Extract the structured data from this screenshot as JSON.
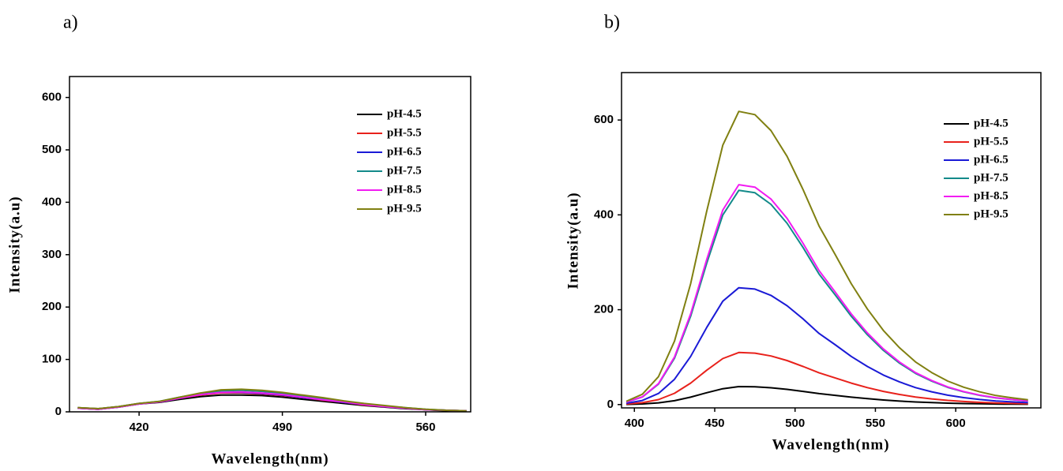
{
  "chart_data": [
    {
      "type": "line",
      "label": "a)",
      "x_label": "Wavelength(nm)",
      "y_label": "Intensity(a.u)",
      "x": [
        390,
        400,
        410,
        420,
        430,
        440,
        450,
        460,
        470,
        480,
        490,
        500,
        510,
        520,
        530,
        540,
        550,
        560,
        570,
        580
      ],
      "xlim": [
        386,
        582
      ],
      "xticks": [
        420,
        490,
        560
      ],
      "ylim": [
        0,
        640
      ],
      "yticks": [
        0,
        100,
        200,
        300,
        400,
        500,
        600
      ],
      "legend": "upper right",
      "series": [
        {
          "name": "pH-4.5",
          "color": "#000000",
          "values": [
            7,
            5,
            9,
            15,
            18,
            24,
            29,
            32,
            32,
            31,
            28,
            24,
            20,
            16,
            12,
            9,
            6,
            4,
            2,
            1
          ]
        },
        {
          "name": "pH-5.5",
          "color": "#e8211b",
          "values": [
            8,
            6,
            10,
            16,
            19,
            26,
            32,
            36,
            36,
            34,
            31,
            27,
            22,
            18,
            13,
            10,
            7,
            4,
            3,
            2
          ]
        },
        {
          "name": "pH-6.5",
          "color": "#1a1ad6",
          "values": [
            7,
            5,
            9,
            15,
            19,
            26,
            33,
            37,
            37,
            35,
            32,
            27,
            23,
            18,
            14,
            10,
            7,
            4,
            3,
            2
          ]
        },
        {
          "name": "pH-7.5",
          "color": "#138a8a",
          "values": [
            8,
            6,
            10,
            16,
            20,
            28,
            35,
            40,
            41,
            39,
            35,
            30,
            25,
            20,
            15,
            11,
            8,
            5,
            3,
            2
          ]
        },
        {
          "name": "pH-8.5",
          "color": "#f21cf2",
          "values": [
            7,
            5,
            9,
            15,
            19,
            26,
            33,
            37,
            38,
            36,
            33,
            28,
            23,
            19,
            14,
            10,
            7,
            4,
            3,
            2
          ]
        },
        {
          "name": "pH-9.5",
          "color": "#808011",
          "values": [
            8,
            6,
            10,
            16,
            20,
            28,
            36,
            42,
            43,
            41,
            37,
            32,
            27,
            21,
            16,
            12,
            8,
            5,
            3,
            2
          ]
        }
      ]
    },
    {
      "type": "line",
      "label": "b)",
      "x_label": "Wavelength(nm)",
      "y_label": "Intensity(a.u)",
      "x": [
        395,
        405,
        415,
        425,
        435,
        445,
        455,
        465,
        475,
        485,
        495,
        505,
        515,
        525,
        535,
        545,
        555,
        565,
        575,
        585,
        595,
        605,
        615,
        625,
        635,
        645
      ],
      "xlim": [
        392,
        653
      ],
      "xticks": [
        400,
        450,
        500,
        550,
        600
      ],
      "ylim": [
        -7,
        700
      ],
      "yticks": [
        0,
        200,
        400,
        600
      ],
      "legend": "upper right",
      "series": [
        {
          "name": "pH-4.5",
          "color": "#000000",
          "values": [
            0.4,
            1.3,
            3.6,
            8.2,
            15.6,
            25,
            33.5,
            37.9,
            37.5,
            35.4,
            32.1,
            27.8,
            23.1,
            19.4,
            15.6,
            12.4,
            9.6,
            7.3,
            5.5,
            4.1,
            3,
            2.2,
            1.6,
            1.2,
            0.9,
            0.6
          ]
        },
        {
          "name": "pH-5.5",
          "color": "#e8211b",
          "values": [
            1.2,
            3.9,
            10.5,
            23.8,
            45.2,
            72.3,
            97,
            109.7,
            108.5,
            102.5,
            92.8,
            80.4,
            66.8,
            56.1,
            45.2,
            35.8,
            27.7,
            21.2,
            16,
            12,
            8.8,
            6.5,
            4.7,
            3.4,
            2.5,
            1.8
          ]
        },
        {
          "name": "pH-6.5",
          "color": "#1a1ad6",
          "values": [
            2.7,
            8.6,
            23.5,
            53.4,
            101.5,
            162.3,
            217.9,
            246.3,
            243.5,
            230.2,
            208.5,
            180.6,
            149.9,
            126,
            101.5,
            80.3,
            62.2,
            47.7,
            35.8,
            26.9,
            19.8,
            14.6,
            10.6,
            7.7,
            5.7,
            4
          ]
        },
        {
          "name": "pH-7.5",
          "color": "#138a8a",
          "values": [
            5,
            15.9,
            43,
            97.8,
            186.2,
            297.6,
            399.5,
            451.6,
            446.7,
            422.2,
            382.3,
            331.1,
            275,
            231,
            186.2,
            147.2,
            114.2,
            87.4,
            65.7,
            49.4,
            36.2,
            26.7,
            19.5,
            14,
            10.4,
            7.2
          ]
        },
        {
          "name": "pH-8.5",
          "color": "#f21cf2",
          "values": [
            5.1,
            16.3,
            44.2,
            100.4,
            191.1,
            305.5,
            410.1,
            463.6,
            458.5,
            433.4,
            392.5,
            339.9,
            282.3,
            237.2,
            191.1,
            151.1,
            117.2,
            89.7,
            67.4,
            50.7,
            37.2,
            27.4,
            20,
            14.4,
            10.7,
            7.4
          ]
        },
        {
          "name": "pH-9.5",
          "color": "#808011",
          "values": [
            6.8,
            21.7,
            58.9,
            133.9,
            254.8,
            407.3,
            546.8,
            618.1,
            611.3,
            577.8,
            523.3,
            453.2,
            376.3,
            316.2,
            254.8,
            201.5,
            156.2,
            119.7,
            89.9,
            67.6,
            49.6,
            36.6,
            26.7,
            19.2,
            14.3,
            9.9
          ]
        }
      ]
    }
  ]
}
